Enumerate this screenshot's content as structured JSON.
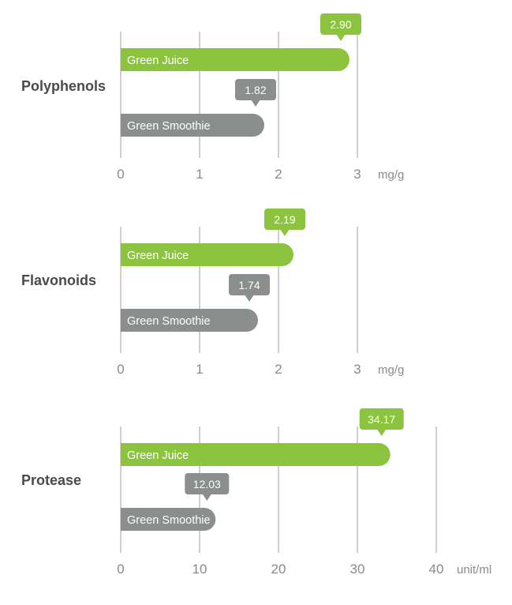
{
  "colors": {
    "green_juice": "#8cc43f",
    "green_smoothie": "#8a8e8c",
    "grid": "#cfcfcf",
    "tick_text": "#8a8a8a",
    "category_text": "#4a4a4a"
  },
  "chart_data": [
    {
      "type": "bar",
      "orientation": "horizontal",
      "title": "Polyphenols",
      "unit": "mg/g",
      "xlim": [
        0,
        3
      ],
      "ticks": [
        "0",
        "1",
        "2",
        "3"
      ],
      "series": [
        {
          "name": "Green Juice",
          "value": 2.9,
          "value_label": "2.90",
          "color": "#8cc43f"
        },
        {
          "name": "Green Smoothie",
          "value": 1.82,
          "value_label": "1.82",
          "color": "#8a8e8c"
        }
      ]
    },
    {
      "type": "bar",
      "orientation": "horizontal",
      "title": "Flavonoids",
      "unit": "mg/g",
      "xlim": [
        0,
        3
      ],
      "ticks": [
        "0",
        "1",
        "2",
        "3"
      ],
      "series": [
        {
          "name": "Green Juice",
          "value": 2.19,
          "value_label": "2.19",
          "color": "#8cc43f"
        },
        {
          "name": "Green Smoothie",
          "value": 1.74,
          "value_label": "1.74",
          "color": "#8a8e8c"
        }
      ]
    },
    {
      "type": "bar",
      "orientation": "horizontal",
      "title": "Protease",
      "unit": "unit/ml",
      "xlim": [
        0,
        40
      ],
      "ticks": [
        "0",
        "10",
        "20",
        "30",
        "40"
      ],
      "series": [
        {
          "name": "Green Juice",
          "value": 34.17,
          "value_label": "34.17",
          "color": "#8cc43f"
        },
        {
          "name": "Green Smoothie",
          "value": 12.03,
          "value_label": "12.03",
          "color": "#8a8e8c"
        }
      ]
    }
  ]
}
